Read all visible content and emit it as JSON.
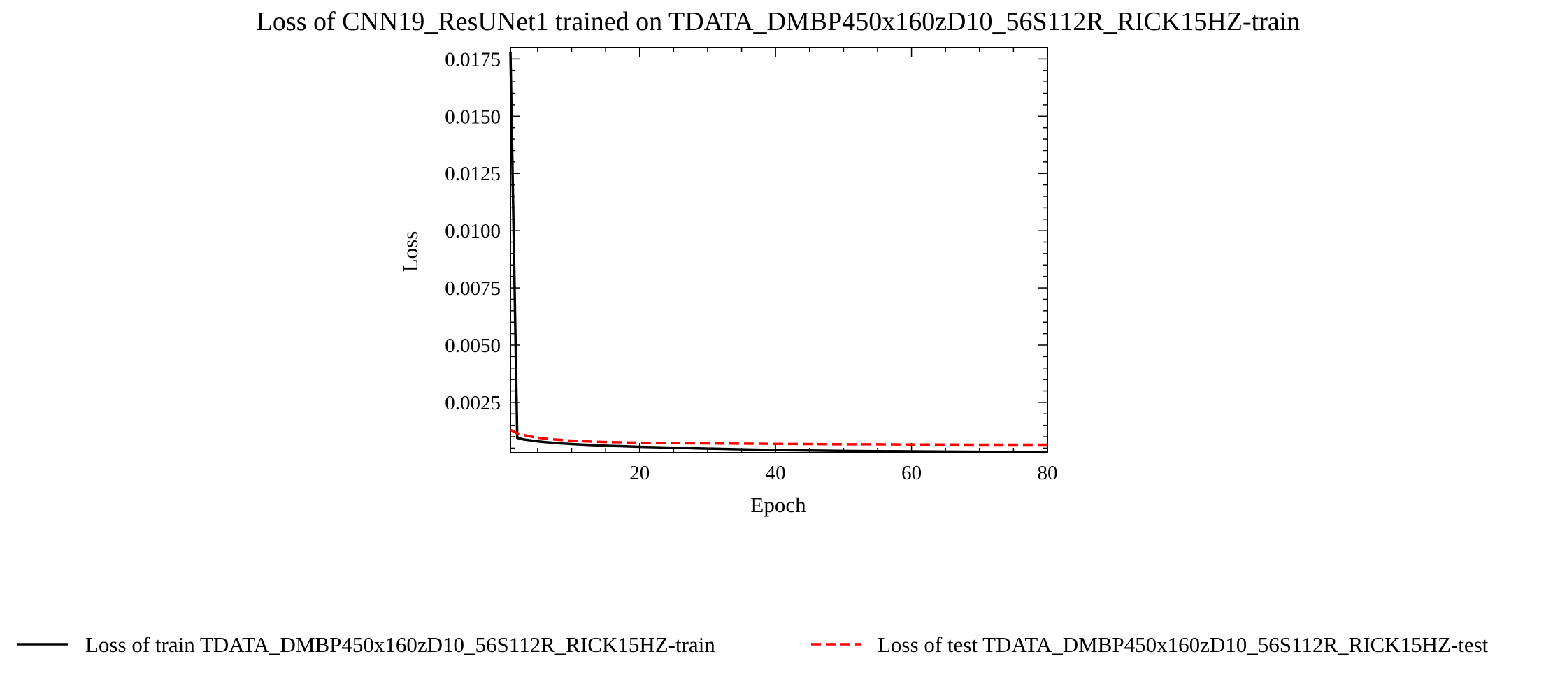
{
  "chart_data": {
    "type": "line",
    "title": "Loss of CNN19_ResUNet1 trained on TDATA_DMBP450x160zD10_56S112R_RICK15HZ-train",
    "xlabel": "Epoch",
    "ylabel": "Loss",
    "xlim": [
      1,
      80
    ],
    "ylim": [
      0.0003,
      0.018
    ],
    "x_ticks": [
      20,
      40,
      60,
      80
    ],
    "y_ticks": [
      0.0025,
      0.005,
      0.0075,
      0.01,
      0.0125,
      0.015,
      0.0175
    ],
    "x_tick_labels": [
      "20",
      "40",
      "60",
      "80"
    ],
    "y_tick_labels": [
      "0.0025",
      "0.0050",
      "0.0075",
      "0.0100",
      "0.0125",
      "0.0150",
      "0.0175"
    ],
    "grid": false,
    "legend_position": "bottom",
    "series": [
      {
        "name": "Loss of train TDATA_DMBP450x160zD10_56S112R_RICK15HZ-train",
        "color": "#000000",
        "style": "solid",
        "x": [
          1,
          2,
          3,
          4,
          5,
          6,
          8,
          10,
          12,
          15,
          20,
          25,
          30,
          35,
          40,
          45,
          50,
          55,
          60,
          65,
          70,
          75,
          80
        ],
        "y": [
          0.0178,
          0.00095,
          0.00088,
          0.00084,
          0.0008,
          0.00077,
          0.00072,
          0.00068,
          0.00065,
          0.00061,
          0.00056,
          0.00052,
          0.00048,
          0.00045,
          0.00042,
          0.0004,
          0.00038,
          0.00037,
          0.00036,
          0.00035,
          0.00034,
          0.00033,
          0.00032
        ]
      },
      {
        "name": "Loss of test TDATA_DMBP450x160zD10_56S112R_RICK15HZ-test",
        "color": "#ff0000",
        "style": "dashed",
        "x": [
          1,
          2,
          3,
          4,
          5,
          6,
          8,
          10,
          12,
          15,
          20,
          25,
          30,
          35,
          40,
          45,
          50,
          55,
          60,
          65,
          70,
          75,
          80
        ],
        "y": [
          0.0013,
          0.00115,
          0.00107,
          0.00101,
          0.00096,
          0.00092,
          0.00087,
          0.00083,
          0.0008,
          0.00077,
          0.00074,
          0.00072,
          0.00071,
          0.0007,
          0.00069,
          0.00068,
          0.00067,
          0.00067,
          0.00066,
          0.00066,
          0.00065,
          0.00065,
          0.00065
        ]
      }
    ]
  }
}
